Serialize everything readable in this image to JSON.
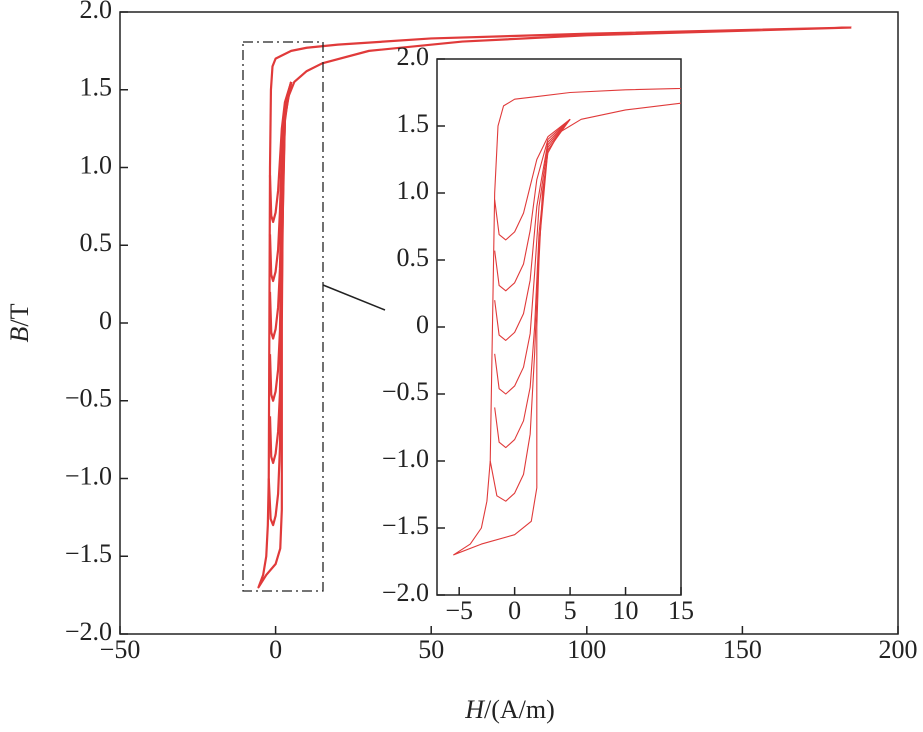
{
  "chart_data": [
    {
      "type": "line",
      "xlabel": [
        "H",
        "/(A/m)"
      ],
      "ylabel": [
        "B",
        "/T"
      ],
      "xlim": [
        -50,
        200
      ],
      "ylim": [
        -2,
        2
      ],
      "xticks": [
        {
          "value": -50,
          "label": "−50"
        },
        0,
        50,
        100,
        150,
        200
      ],
      "yticks": [
        {
          "value": -2,
          "label": "−2.0"
        },
        {
          "value": -1.5,
          "label": "−1.5"
        },
        {
          "value": -1,
          "label": "−1.0"
        },
        {
          "value": -0.5,
          "label": "−0.5"
        },
        0,
        0.5,
        {
          "value": 1,
          "label": "1.0"
        },
        1.5,
        {
          "value": 2,
          "label": "2.0"
        }
      ],
      "series": [
        {
          "color": "#e03a3a",
          "x": [
            185,
            100,
            50,
            20,
            10,
            5,
            2,
            0,
            -1,
            -1.5,
            -1.8,
            -2,
            -2.2,
            -2.5,
            -3,
            -4,
            -5.5,
            -3,
            0,
            1.5,
            2,
            2,
            2,
            2.2,
            2.5,
            3,
            4,
            6,
            10,
            15,
            30,
            60,
            100,
            185
          ],
          "values": [
            1.9,
            1.86,
            1.83,
            1.79,
            1.77,
            1.75,
            1.72,
            1.7,
            1.65,
            1.5,
            1.0,
            0,
            -1,
            -1.3,
            -1.5,
            -1.62,
            -1.7,
            -1.62,
            -1.55,
            -1.45,
            -1.2,
            -0.5,
            0,
            0.5,
            1.0,
            1.3,
            1.45,
            1.55,
            1.62,
            1.67,
            1.75,
            1.81,
            1.85,
            1.9
          ]
        },
        {
          "color": "#e03a3a",
          "x": [
            -1.8,
            -1.4,
            -0.8,
            0,
            0.8,
            1.4,
            2.0,
            3.0,
            5.0
          ],
          "values": [
            0.95,
            0.69,
            0.65,
            0.71,
            0.85,
            1.05,
            1.25,
            1.42,
            1.55
          ]
        },
        {
          "color": "#e03a3a",
          "x": [
            -1.8,
            -1.4,
            -0.8,
            0,
            0.8,
            1.4,
            2.0,
            3.0,
            5.0
          ],
          "values": [
            0.57,
            0.31,
            0.27,
            0.33,
            0.47,
            0.72,
            1.1,
            1.4,
            1.55
          ]
        },
        {
          "color": "#e03a3a",
          "x": [
            -1.8,
            -1.4,
            -0.8,
            0,
            0.8,
            1.4,
            2.0,
            3.0,
            5.0
          ],
          "values": [
            0.2,
            -0.06,
            -0.1,
            -0.04,
            0.1,
            0.35,
            0.9,
            1.38,
            1.55
          ]
        },
        {
          "color": "#e03a3a",
          "x": [
            -1.8,
            -1.4,
            -0.8,
            0,
            0.8,
            1.4,
            1.8,
            2.2,
            3.0,
            5.0
          ],
          "values": [
            -0.2,
            -0.46,
            -0.5,
            -0.44,
            -0.3,
            -0.05,
            0.4,
            0.9,
            1.36,
            1.55
          ]
        },
        {
          "color": "#e03a3a",
          "x": [
            -1.8,
            -1.4,
            -0.8,
            0,
            0.8,
            1.4,
            1.8,
            2.2,
            3.0,
            5.0
          ],
          "values": [
            -0.6,
            -0.86,
            -0.9,
            -0.84,
            -0.7,
            -0.45,
            0,
            0.7,
            1.34,
            1.55
          ]
        },
        {
          "color": "#e03a3a",
          "x": [
            -2.2,
            -1.6,
            -0.8,
            0,
            0.8,
            1.4,
            1.8,
            2.2,
            3.0,
            5.0
          ],
          "values": [
            -1.0,
            -1.26,
            -1.3,
            -1.24,
            -1.1,
            -0.8,
            -0.2,
            0.6,
            1.32,
            1.55
          ]
        }
      ]
    },
    {
      "type": "line",
      "xlim": [
        -7,
        15
      ],
      "ylim": [
        -2,
        2
      ],
      "xticks": [
        {
          "value": -5,
          "label": "−5"
        },
        0,
        5,
        10,
        15
      ],
      "yticks": [
        {
          "value": -2,
          "label": "−2.0"
        },
        {
          "value": -1.5,
          "label": "−1.5"
        },
        {
          "value": -1,
          "label": "−1.0"
        },
        {
          "value": -0.5,
          "label": "−0.5"
        },
        0,
        0.5,
        {
          "value": 1,
          "label": "1.0"
        },
        1.5,
        {
          "value": 2,
          "label": "2.0"
        }
      ]
    }
  ]
}
